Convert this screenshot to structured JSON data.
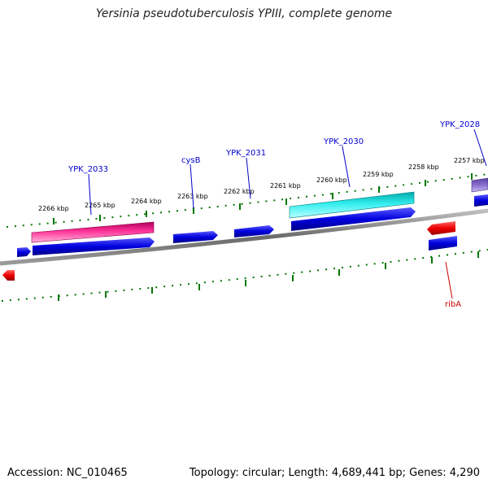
{
  "title": "Yersinia pseudotuberculosis YPIII, complete genome",
  "footer": {
    "accession": "Accession: NC_010465",
    "topology": "Topology: circular; Length: 4,689,441 bp; Genes: 4,290"
  },
  "ticks": [
    "2266 kbp",
    "2265 kbp",
    "2264 kbp",
    "2263 kbp",
    "2262 kbp",
    "2261 kbp",
    "2260 kbp",
    "2259 kbp",
    "2258 kbp",
    "2257 kbp"
  ],
  "gene_labels": [
    "YPK_2033",
    "cysB",
    "YPK_2031",
    "YPK_2030",
    "YPK_2028",
    "ribA"
  ],
  "colors": {
    "backbone": "#7f7f7f",
    "forward_cds": "#0000dd",
    "reverse_cds": "#dd0000",
    "label_forward": "#0000cc",
    "label_reverse": "#cc0000",
    "tick": "#007700",
    "feature_pink": "#ff3399",
    "feature_cyan": "#33eeee",
    "feature_violet": "#7a5fc0"
  }
}
